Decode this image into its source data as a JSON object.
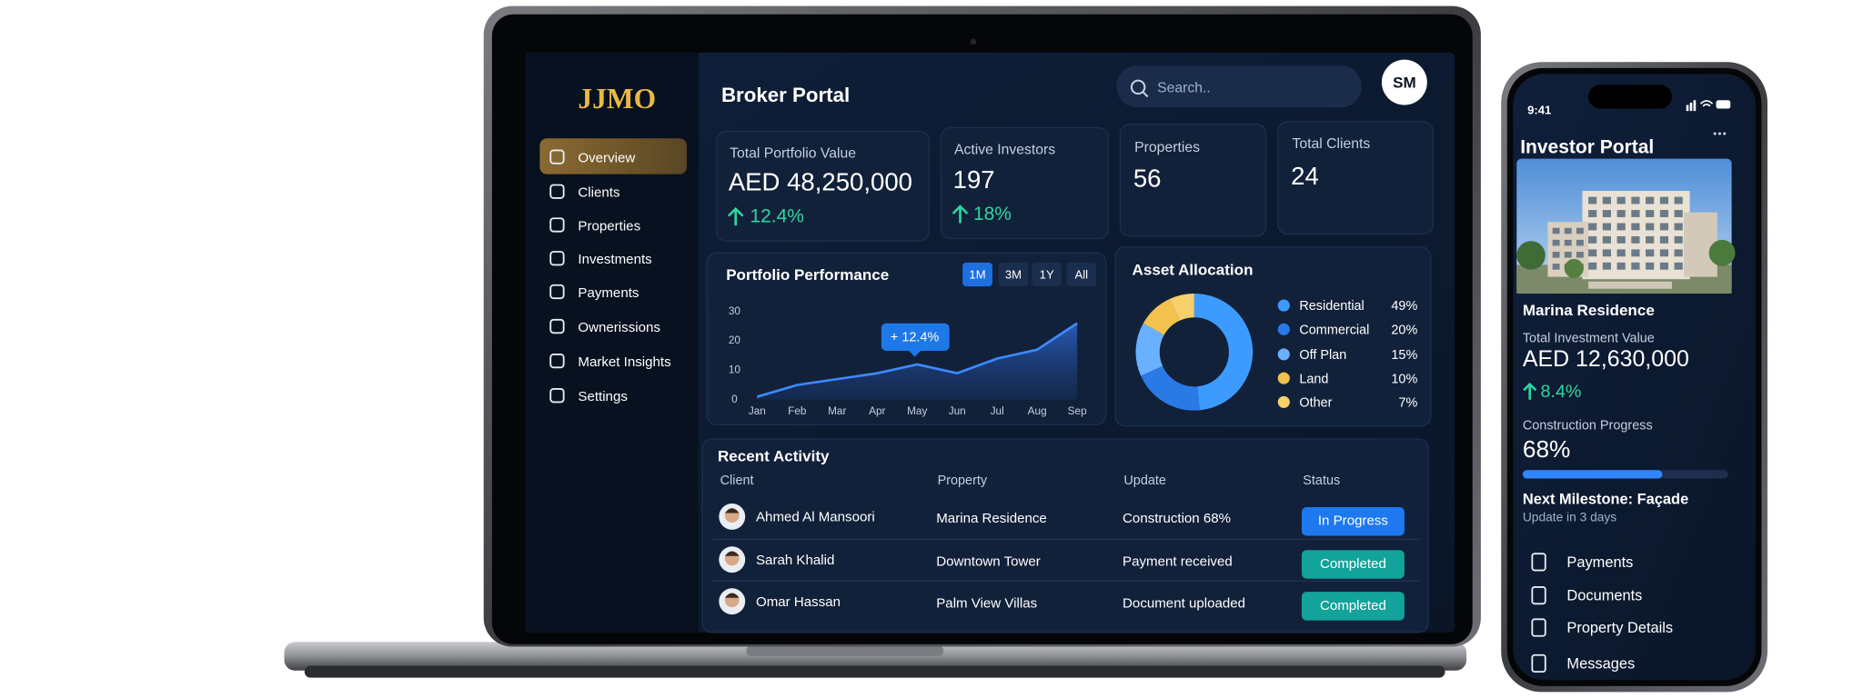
{
  "laptop": {
    "sidebar": {
      "logo": "JJMO",
      "nav": [
        "Overview",
        "Clients",
        "Properties",
        "Investments",
        "Payments",
        "Ownerissions",
        "Market Insights",
        "Settings"
      ]
    },
    "header": {
      "title": "Broker Portal",
      "search_placeholder": "Search..",
      "avatar": "SM"
    },
    "stats": [
      {
        "label": "Total Portfolio Value",
        "value": "AED 48,250,000",
        "change": "12.4%"
      },
      {
        "label": "Active Investors",
        "value": "197",
        "change": "18%"
      },
      {
        "label": "Properties",
        "value": "56"
      },
      {
        "label": "Total Clients",
        "value": "24"
      }
    ],
    "performance": {
      "title": "Portfolio Performance",
      "ranges": [
        "1M",
        "3M",
        "1Y",
        "All"
      ],
      "annotation": "+ 12.4%",
      "categories": [
        "Jan",
        "Feb",
        "Mar",
        "Apr",
        "May",
        "Jun",
        "Jul",
        "Aug",
        "Sep"
      ],
      "values": [
        1,
        5,
        7,
        9,
        12,
        9,
        14,
        17,
        26
      ],
      "ylim": [
        0,
        30
      ],
      "yticks": [
        0,
        10,
        20,
        30
      ],
      "color": "#3d8bff"
    },
    "allocation": {
      "title": "Asset Allocation",
      "categories": [
        "Residential",
        "Commercial",
        "Off Plan",
        "Land",
        "Other"
      ],
      "values": [
        49,
        20,
        15,
        10,
        7
      ],
      "value_labels": [
        "49%",
        "20%",
        "15%",
        "10%",
        "7%"
      ],
      "colors": [
        "#3d9bff",
        "#2a7ae6",
        "#69b1ff",
        "#f2c14e",
        "#f7cf6b"
      ]
    },
    "activity": {
      "title": "Recent Activity",
      "columns": [
        "Client",
        "Property",
        "Update",
        "Status"
      ],
      "rows": [
        {
          "client": "Ahmed Al Mansoori",
          "property": "Marina Residence",
          "update": "Construction 68%",
          "status": "In Progress",
          "status_color": "#1e78f0"
        },
        {
          "client": "Sarah Khalid",
          "property": "Downtown Tower",
          "update": "Payment received",
          "status": "Completed",
          "status_color": "#12a39a"
        },
        {
          "client": "Omar Hassan",
          "property": "Palm View Villas",
          "update": "Document uploaded",
          "status": "Completed",
          "status_color": "#12a39a"
        }
      ]
    }
  },
  "phone": {
    "time": "9:41",
    "title": "Investor Portal",
    "property": "Marina Residence",
    "investment_label": "Total Investment Value",
    "investment_value": "AED 12,630,000",
    "change": "8.4%",
    "progress_title": "Construction Progress",
    "progress": {
      "value": 68,
      "label": "68%"
    },
    "milestone": "Next Milestone: Façade",
    "milestone_note": "Update in 3 days",
    "menu": [
      "Payments",
      "Documents",
      "Property Details",
      "Messages"
    ]
  }
}
